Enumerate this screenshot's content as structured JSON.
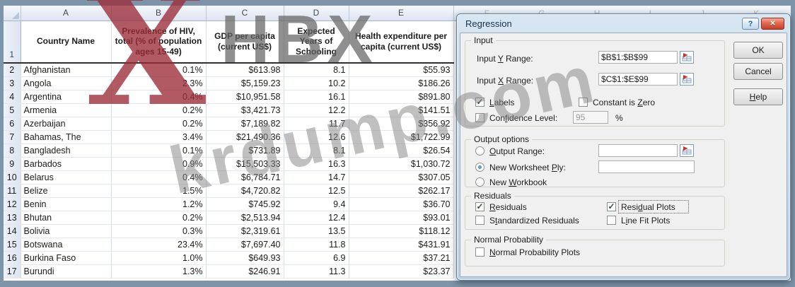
{
  "watermarks": {
    "big_x": "X",
    "hbx": "HBX",
    "diagonal": "krdump.com"
  },
  "colors": {
    "close_button": "#c5402c",
    "dialog_titlebar": "#cfdfef",
    "header_fill": "#dde5f1",
    "watermark_red": "#9b2c38",
    "watermark_gray": "#828282"
  },
  "spreadsheet": {
    "header_row_num": "1",
    "col_letters": [
      "A",
      "B",
      "C",
      "D",
      "E"
    ],
    "ghost_col_letters": [
      "F",
      "G",
      "H",
      "I",
      "J",
      "K"
    ],
    "headers": [
      "Country Name",
      "Prevalence of HIV, total (% of population ages 15-49)",
      "GDP per capita (current US$)",
      "Expected Years of Schooling",
      "Health expenditure per capita (current US$)"
    ],
    "rows": [
      {
        "num": "2",
        "country": "Afghanistan",
        "hiv": "0.1%",
        "gdp": "$613.98",
        "school": "8.1",
        "health": "$55.93"
      },
      {
        "num": "3",
        "country": "Angola",
        "hiv": "2.3%",
        "gdp": "$5,159.23",
        "school": "10.2",
        "health": "$186.26"
      },
      {
        "num": "4",
        "country": "Argentina",
        "hiv": "0.4%",
        "gdp": "$10,951.58",
        "school": "16.1",
        "health": "$891.80"
      },
      {
        "num": "5",
        "country": "Armenia",
        "hiv": "0.2%",
        "gdp": "$3,421.73",
        "school": "12.2",
        "health": "$141.51"
      },
      {
        "num": "6",
        "country": "Azerbaijan",
        "hiv": "0.2%",
        "gdp": "$7,189.82",
        "school": "11.7",
        "health": "$356.92"
      },
      {
        "num": "7",
        "country": "Bahamas, The",
        "hiv": "3.4%",
        "gdp": "$21,490.36",
        "school": "12.6",
        "health": "$1,722.99"
      },
      {
        "num": "8",
        "country": "Bangladesh",
        "hiv": "0.1%",
        "gdp": "$731.89",
        "school": "8.1",
        "health": "$26.54"
      },
      {
        "num": "9",
        "country": "Barbados",
        "hiv": "0.9%",
        "gdp": "$15,503.33",
        "school": "16.3",
        "health": "$1,030.72"
      },
      {
        "num": "10",
        "country": "Belarus",
        "hiv": "0.4%",
        "gdp": "$6,784.71",
        "school": "14.7",
        "health": "$307.05"
      },
      {
        "num": "11",
        "country": "Belize",
        "hiv": "1.5%",
        "gdp": "$4,720.82",
        "school": "12.5",
        "health": "$262.17"
      },
      {
        "num": "12",
        "country": "Benin",
        "hiv": "1.2%",
        "gdp": "$745.92",
        "school": "9.4",
        "health": "$36.70"
      },
      {
        "num": "13",
        "country": "Bhutan",
        "hiv": "0.2%",
        "gdp": "$2,513.94",
        "school": "12.4",
        "health": "$93.01"
      },
      {
        "num": "14",
        "country": "Bolivia",
        "hiv": "0.3%",
        "gdp": "$2,319.61",
        "school": "13.5",
        "health": "$118.12"
      },
      {
        "num": "15",
        "country": "Botswana",
        "hiv": "23.4%",
        "gdp": "$7,697.40",
        "school": "11.8",
        "health": "$431.91"
      },
      {
        "num": "16",
        "country": "Burkina Faso",
        "hiv": "1.0%",
        "gdp": "$649.93",
        "school": "6.9",
        "health": "$37.21"
      },
      {
        "num": "17",
        "country": "Burundi",
        "hiv": "1.3%",
        "gdp": "$246.91",
        "school": "11.3",
        "health": "$23.37"
      }
    ]
  },
  "dialog": {
    "title": "Regression",
    "titlebar": {
      "help_glyph": "?",
      "close_glyph": "✕"
    },
    "check_glyph": "✓",
    "input_group": {
      "label": "Input",
      "y_label": "Input Y Range:",
      "y_value": "$B$1:$B$99",
      "x_label": "Input X Range:",
      "x_value": "$C$1:$E$99",
      "labels_checkbox": "Labels",
      "constant_checkbox": "Constant is Zero",
      "confidence_checkbox": "Confidence Level:",
      "confidence_value": "95",
      "percent_sign": "%"
    },
    "output_group": {
      "label": "Output options",
      "output_range_label": "Output Range:",
      "output_range_value": "",
      "new_worksheet_label": "New Worksheet Ply:",
      "new_worksheet_value": "",
      "new_workbook_label": "New Workbook"
    },
    "residuals_group": {
      "label": "Residuals",
      "residuals_label": "Residuals",
      "standardized_label": "Standardized Residuals",
      "residual_plots_label": "Residual Plots",
      "line_fit_label": "Line Fit Plots"
    },
    "normal_group": {
      "label": "Normal Probability",
      "normal_plots_label": "Normal Probability Plots"
    },
    "buttons": {
      "ok": "OK",
      "cancel": "Cancel",
      "help": "Help"
    }
  }
}
